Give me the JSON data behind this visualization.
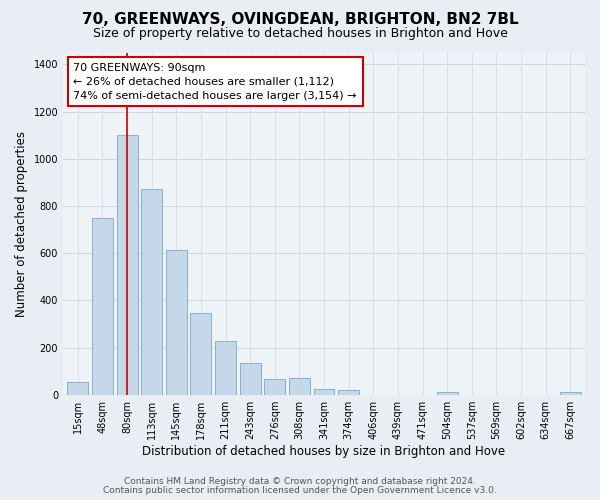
{
  "title": "70, GREENWAYS, OVINGDEAN, BRIGHTON, BN2 7BL",
  "subtitle": "Size of property relative to detached houses in Brighton and Hove",
  "xlabel": "Distribution of detached houses by size in Brighton and Hove",
  "ylabel": "Number of detached properties",
  "bar_labels": [
    "15sqm",
    "48sqm",
    "80sqm",
    "113sqm",
    "145sqm",
    "178sqm",
    "211sqm",
    "243sqm",
    "276sqm",
    "308sqm",
    "341sqm",
    "374sqm",
    "406sqm",
    "439sqm",
    "471sqm",
    "504sqm",
    "537sqm",
    "569sqm",
    "602sqm",
    "634sqm",
    "667sqm"
  ],
  "bar_values": [
    55,
    750,
    1100,
    870,
    615,
    348,
    228,
    133,
    65,
    72,
    25,
    18,
    0,
    0,
    0,
    12,
    0,
    0,
    0,
    0,
    12
  ],
  "bar_color": "#c5d8ea",
  "bar_edge_color": "#8ab0cc",
  "vline_x_idx": 2,
  "vline_color": "#cc0000",
  "ylim": [
    0,
    1450
  ],
  "yticks": [
    0,
    200,
    400,
    600,
    800,
    1000,
    1200,
    1400
  ],
  "annotation_title": "70 GREENWAYS: 90sqm",
  "annotation_line1": "← 26% of detached houses are smaller (1,112)",
  "annotation_line2": "74% of semi-detached houses are larger (3,154) →",
  "annotation_box_color": "#ffffff",
  "annotation_box_edge": "#cc0000",
  "footnote1": "Contains HM Land Registry data © Crown copyright and database right 2024.",
  "footnote2": "Contains public sector information licensed under the Open Government Licence v3.0.",
  "background_color": "#e8eef4",
  "plot_bg_color": "#eef3f8",
  "grid_color": "#c8d4e0",
  "title_fontsize": 11,
  "subtitle_fontsize": 9,
  "xlabel_fontsize": 8.5,
  "ylabel_fontsize": 8.5,
  "tick_fontsize": 7,
  "footnote_fontsize": 6.5,
  "ann_fontsize": 8
}
